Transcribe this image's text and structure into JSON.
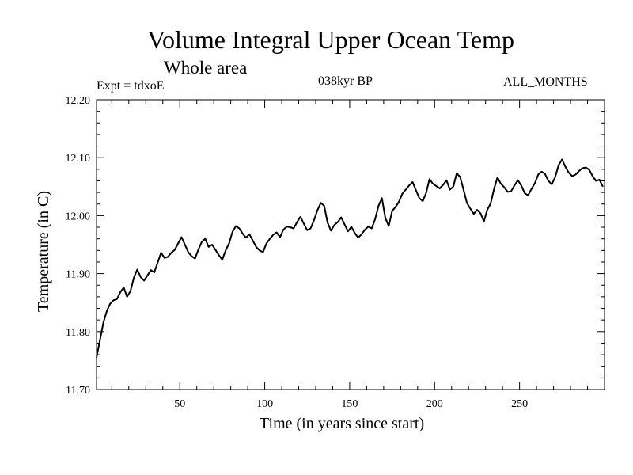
{
  "chart_data": {
    "type": "line",
    "title": "Volume Integral Upper Ocean Temp",
    "subtitle": "Whole area",
    "annotations": {
      "left": "Expt = tdxoE",
      "center": "038kyr BP",
      "right": "ALL_MONTHS"
    },
    "xlabel": "Time (in years since start)",
    "ylabel": "Temperature (in C)",
    "xlim": [
      1,
      300
    ],
    "ylim": [
      11.7,
      12.2
    ],
    "x_ticks": [
      50,
      100,
      150,
      200,
      250
    ],
    "y_ticks": [
      "11.70",
      "11.80",
      "11.90",
      "12.00",
      "12.10",
      "12.20"
    ],
    "grid": false,
    "series": [
      {
        "color": "#000000",
        "x": [
          1,
          3,
          5,
          7,
          9,
          11,
          13,
          15,
          17,
          19,
          21,
          23,
          25,
          27,
          29,
          31,
          33,
          35,
          37,
          39,
          41,
          43,
          45,
          47,
          49,
          51,
          53,
          55,
          57,
          59,
          61,
          63,
          65,
          67,
          69,
          71,
          73,
          75,
          77,
          79,
          81,
          83,
          85,
          87,
          89,
          91,
          93,
          95,
          97,
          99,
          101,
          103,
          105,
          107,
          109,
          111,
          113,
          115,
          117,
          119,
          121,
          123,
          125,
          127,
          129,
          131,
          133,
          135,
          137,
          139,
          141,
          143,
          145,
          147,
          149,
          151,
          153,
          155,
          157,
          159,
          161,
          163,
          165,
          167,
          169,
          171,
          173,
          175,
          177,
          179,
          181,
          183,
          185,
          187,
          189,
          191,
          193,
          195,
          197,
          199,
          201,
          203,
          205,
          207,
          209,
          211,
          213,
          215,
          217,
          219,
          221,
          223,
          225,
          227,
          229,
          231,
          233,
          235,
          237,
          239,
          241,
          243,
          245,
          247,
          249,
          251,
          253,
          255,
          257,
          259,
          261,
          263,
          265,
          267,
          269,
          271,
          273,
          275,
          277,
          279,
          281,
          283,
          285,
          287,
          289,
          291,
          293,
          295,
          297,
          299
        ],
        "values": [
          11.755,
          11.785,
          11.815,
          11.835,
          11.848,
          11.854,
          11.856,
          11.868,
          11.876,
          11.86,
          11.87,
          11.893,
          11.907,
          11.894,
          11.888,
          11.897,
          11.906,
          11.902,
          11.919,
          11.936,
          11.927,
          11.929,
          11.936,
          11.941,
          11.952,
          11.963,
          11.95,
          11.937,
          11.93,
          11.926,
          11.942,
          11.955,
          11.96,
          11.946,
          11.95,
          11.941,
          11.932,
          11.924,
          11.94,
          11.952,
          11.972,
          11.982,
          11.978,
          11.969,
          11.962,
          11.968,
          11.957,
          11.946,
          11.94,
          11.937,
          11.952,
          11.96,
          11.967,
          11.971,
          11.963,
          11.976,
          11.981,
          11.98,
          11.978,
          11.989,
          11.998,
          11.986,
          11.975,
          11.978,
          11.992,
          12.009,
          12.022,
          12.017,
          11.988,
          11.974,
          11.984,
          11.989,
          11.997,
          11.985,
          11.973,
          11.981,
          11.97,
          11.962,
          11.968,
          11.976,
          11.981,
          11.978,
          11.994,
          12.017,
          12.03,
          11.996,
          11.982,
          12.008,
          12.015,
          12.024,
          12.038,
          12.045,
          12.052,
          12.058,
          12.044,
          12.03,
          12.025,
          12.039,
          12.063,
          12.055,
          12.051,
          12.047,
          12.053,
          12.061,
          12.045,
          12.05,
          12.073,
          12.067,
          12.045,
          12.022,
          12.012,
          12.003,
          12.01,
          12.004,
          11.99,
          12.01,
          12.021,
          12.046,
          12.066,
          12.055,
          12.049,
          12.041,
          12.042,
          12.052,
          12.061,
          12.052,
          12.039,
          12.035,
          12.046,
          12.056,
          12.071,
          12.076,
          12.072,
          12.06,
          12.054,
          12.067,
          12.087,
          12.097,
          12.084,
          12.074,
          12.068,
          12.071,
          12.077,
          12.082,
          12.083,
          12.079,
          12.068,
          12.06,
          12.062,
          12.05
        ]
      }
    ]
  }
}
